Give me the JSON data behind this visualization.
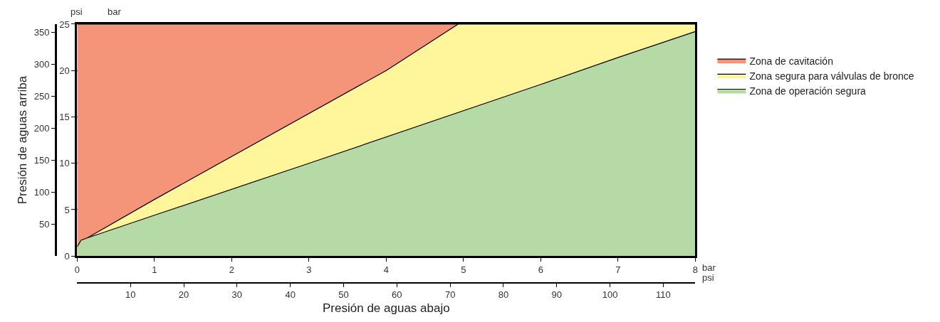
{
  "chart_data": {
    "type": "area",
    "xlabel": "Presión de aguas abajo",
    "ylabel": "Presión de aguas arriba",
    "series": [
      {
        "name": "Zona de cavitación",
        "color": "#f4957a",
        "axis": "y2",
        "x": [
          0,
          8
        ],
        "values": [
          25,
          25
        ]
      },
      {
        "name": "Zona segura para válvulas de bronce",
        "color": "#fff59a",
        "axis": "y2",
        "x": [
          0.13,
          1,
          4,
          4.93,
          8
        ],
        "values": [
          1.95,
          6.1,
          20,
          25,
          25
        ]
      },
      {
        "name": "Zona de operación segura",
        "color": "#b5daa5",
        "axis": "y2",
        "x": [
          0,
          0.05,
          0.13,
          1,
          3,
          6,
          7,
          8
        ],
        "values": [
          1.0,
          1.7,
          1.95,
          4.4,
          10,
          18.5,
          21.4,
          24.2
        ]
      }
    ],
    "xlim": [
      0,
      8
    ],
    "xticks": [
      0,
      1,
      2,
      3,
      4,
      5,
      6,
      7,
      8
    ],
    "y2lim": [
      0,
      25
    ],
    "y2ticks": [
      0,
      5,
      10,
      15,
      20,
      25
    ],
    "x2lim": [
      0,
      116
    ],
    "x2ticks": [
      10,
      20,
      30,
      40,
      50,
      60,
      70,
      80,
      90,
      100,
      110
    ],
    "ylim": [
      0,
      363
    ],
    "yticks": [
      50,
      100,
      150,
      200,
      250,
      300,
      350
    ],
    "annotations": [
      "psi",
      "bar",
      "bar",
      "psi"
    ],
    "grid": true,
    "legend": "right",
    "marker": "none",
    "line_style": "solid"
  }
}
